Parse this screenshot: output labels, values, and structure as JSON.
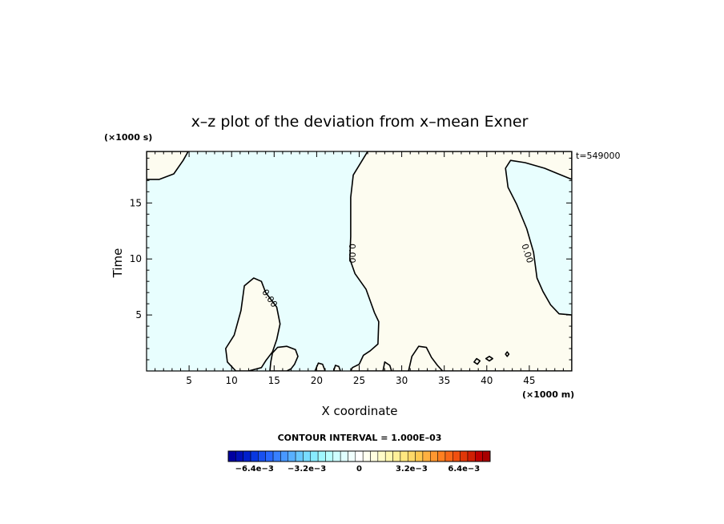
{
  "chart_data": {
    "type": "contour",
    "title": "x–z plot of the deviation from x–mean Exner",
    "xlabel": "X coordinate",
    "ylabel": "Time",
    "x_scale_label": "(×1000 m)",
    "y_scale_label": "(×1000 s)",
    "time_label": "t=549000",
    "xlim": [
      0,
      50
    ],
    "ylim": [
      0,
      19.6
    ],
    "x_ticks": [
      5,
      10,
      15,
      20,
      25,
      30,
      35,
      40,
      45
    ],
    "x_tick_labels": [
      "5",
      "10",
      "15",
      "20",
      "25",
      "30",
      "35",
      "40",
      "45"
    ],
    "y_ticks": [
      5,
      10,
      15
    ],
    "y_tick_labels": [
      "5",
      "10",
      "15"
    ],
    "contour_interval_label": "CONTOUR INTERVAL = 1.000E–03",
    "contour_level_label": "0.00",
    "fill_colors": {
      "negative": "#e8fefe",
      "positive": "#fdfcf0"
    },
    "colorbar": {
      "min": -0.008,
      "max": 0.008,
      "tick_values": [
        -0.0064,
        -0.0032,
        0,
        0.0032,
        0.0064
      ],
      "tick_labels": [
        "−6.4e−3",
        "−3.2e−3",
        "0",
        "3.2e−3",
        "6.4e−3"
      ],
      "colors": [
        "#0000a0",
        "#0010b8",
        "#0020cc",
        "#0838e0",
        "#1850f0",
        "#2868ff",
        "#3880ff",
        "#4898ff",
        "#58b0ff",
        "#68c8ff",
        "#78dcff",
        "#88ecff",
        "#a0f8ff",
        "#b8ffff",
        "#cefeff",
        "#e0feff",
        "#f0fffe",
        "#ffffff",
        "#fffff0",
        "#fffee0",
        "#fffcc8",
        "#fff8b0",
        "#fff098",
        "#ffe880",
        "#ffd868",
        "#ffc850",
        "#ffb040",
        "#ff9830",
        "#ff8020",
        "#f86818",
        "#f05010",
        "#e03808",
        "#d02004",
        "#c00000",
        "#a80000"
      ]
    },
    "regions": [
      {
        "name": "top-left-positive",
        "value": "positive",
        "points": [
          [
            0,
            19.6
          ],
          [
            0,
            17.1
          ],
          [
            1.5,
            17.1
          ],
          [
            3.2,
            17.6
          ],
          [
            4.3,
            18.8
          ],
          [
            4.9,
            19.6
          ]
        ]
      },
      {
        "name": "center-right-positive",
        "value": "positive",
        "points": [
          [
            26,
            19.6
          ],
          [
            24.3,
            17.5
          ],
          [
            24,
            15.5
          ],
          [
            24,
            12
          ],
          [
            23.9,
            10
          ],
          [
            24.5,
            8.7
          ],
          [
            25.8,
            7.3
          ],
          [
            26.8,
            5.2
          ],
          [
            27.3,
            4.4
          ],
          [
            27.2,
            2.4
          ],
          [
            26.3,
            1.8
          ],
          [
            25.5,
            1.4
          ],
          [
            25,
            0.6
          ],
          [
            24.2,
            0.3
          ],
          [
            24,
            0
          ],
          [
            45,
            0
          ],
          [
            47,
            0
          ],
          [
            48.7,
            0
          ],
          [
            50,
            0
          ],
          [
            50,
            5
          ],
          [
            48.5,
            5.1
          ],
          [
            47.5,
            5.9
          ],
          [
            46.6,
            7.1
          ],
          [
            45.9,
            8.3
          ],
          [
            45.5,
            10.6
          ],
          [
            44.7,
            12.7
          ],
          [
            43.5,
            14.9
          ],
          [
            42.5,
            16.4
          ],
          [
            42.2,
            18.1
          ],
          [
            42.8,
            18.8
          ],
          [
            44.5,
            18.6
          ],
          [
            46.8,
            18.1
          ],
          [
            48.4,
            17.6
          ],
          [
            50,
            17.1
          ],
          [
            50,
            19.6
          ]
        ]
      },
      {
        "name": "left-blob-positive",
        "value": "positive",
        "points": [
          [
            9.3,
            2
          ],
          [
            10.3,
            3.2
          ],
          [
            11.1,
            5.4
          ],
          [
            11.5,
            7.6
          ],
          [
            12.6,
            8.3
          ],
          [
            13.5,
            8
          ],
          [
            14,
            7
          ],
          [
            15.3,
            5.7
          ],
          [
            15.7,
            4.2
          ],
          [
            15.3,
            2.8
          ],
          [
            14.8,
            1.7
          ],
          [
            14,
            0.9
          ],
          [
            13.5,
            0.3
          ],
          [
            12,
            0
          ],
          [
            10.5,
            0
          ],
          [
            9.5,
            0.8
          ]
        ]
      },
      {
        "name": "lower-center-blob-positive",
        "value": "positive",
        "points": [
          [
            14.5,
            0
          ],
          [
            14.6,
            0.8
          ],
          [
            14.8,
            1.6
          ],
          [
            15.4,
            2.1
          ],
          [
            16.5,
            2.2
          ],
          [
            17.5,
            1.9
          ],
          [
            17.8,
            1.3
          ],
          [
            17.4,
            0.6
          ],
          [
            17,
            0.2
          ],
          [
            16.5,
            0
          ]
        ]
      },
      {
        "name": "small-bump-a",
        "value": "positive",
        "points": [
          [
            19.8,
            0
          ],
          [
            20.2,
            0.7
          ],
          [
            20.7,
            0.6
          ],
          [
            21,
            0
          ]
        ]
      },
      {
        "name": "small-bump-b",
        "value": "positive",
        "points": [
          [
            22,
            0
          ],
          [
            22.2,
            0.5
          ],
          [
            22.6,
            0.4
          ],
          [
            22.8,
            0
          ]
        ]
      },
      {
        "name": "small-bump-c",
        "value": "positive",
        "points": [
          [
            30.8,
            0
          ],
          [
            31.2,
            1.3
          ],
          [
            32,
            2.2
          ],
          [
            32.9,
            2.1
          ],
          [
            33.5,
            1.2
          ],
          [
            34.2,
            0.5
          ],
          [
            34.8,
            0
          ]
        ]
      },
      {
        "name": "small-bump-d",
        "value": "positive",
        "points": [
          [
            27.8,
            0
          ],
          [
            28,
            0.8
          ],
          [
            28.6,
            0.5
          ],
          [
            28.8,
            0
          ]
        ]
      },
      {
        "name": "small-blob-e",
        "value": "positive",
        "points": [
          [
            38.5,
            0.8
          ],
          [
            38.8,
            1.1
          ],
          [
            39.2,
            0.9
          ],
          [
            38.9,
            0.6
          ]
        ]
      },
      {
        "name": "small-blob-f",
        "value": "positive",
        "points": [
          [
            39.9,
            1.1
          ],
          [
            40.3,
            1.3
          ],
          [
            40.7,
            1.1
          ],
          [
            40.3,
            0.9
          ]
        ]
      },
      {
        "name": "small-blob-g",
        "value": "positive",
        "points": [
          [
            42.2,
            1.5
          ],
          [
            42.4,
            1.7
          ],
          [
            42.6,
            1.5
          ],
          [
            42.4,
            1.3
          ]
        ]
      }
    ],
    "contour_labels": [
      {
        "x": 24.2,
        "y": 10.5,
        "rotate": 90
      },
      {
        "x": 44.8,
        "y": 10.5,
        "rotate": 72
      },
      {
        "x": 14.5,
        "y": 6.5,
        "rotate": 55
      }
    ]
  }
}
